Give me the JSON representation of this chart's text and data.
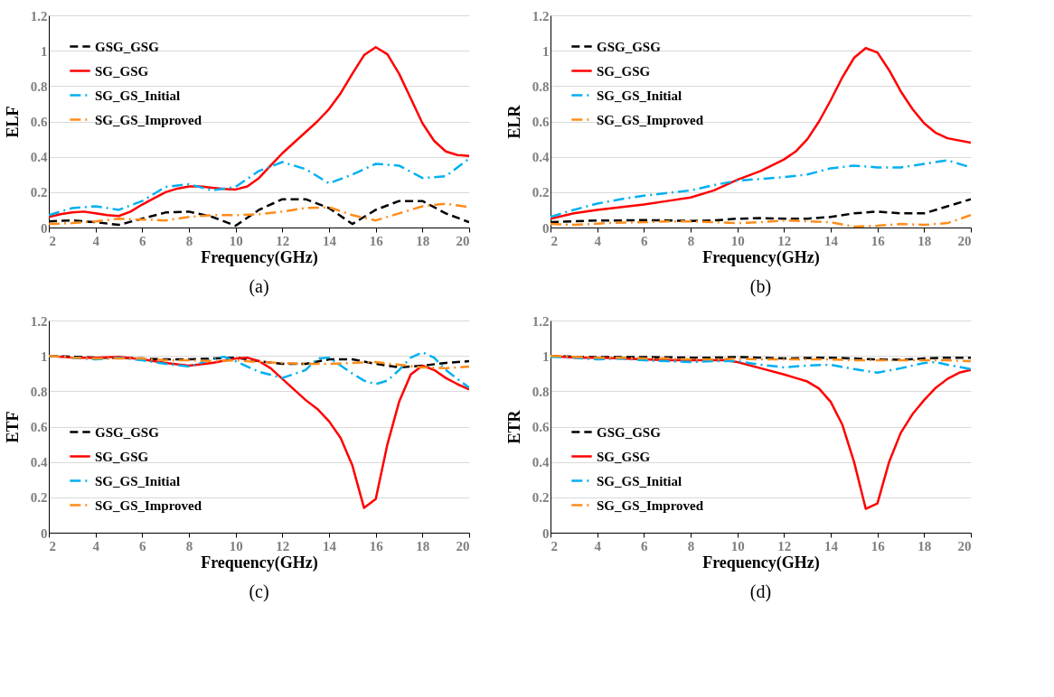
{
  "chart_data": [
    {
      "type": "line",
      "title": "(a)",
      "xlabel": "Frequency(GHz)",
      "ylabel": "ELF",
      "xlim": [
        2,
        20
      ],
      "xticks": [
        2,
        4,
        6,
        8,
        10,
        12,
        14,
        16,
        18,
        20
      ],
      "ylim": [
        0,
        1.2
      ],
      "yticks": [
        0,
        0.2,
        0.4,
        0.6,
        0.8,
        1,
        1.2
      ],
      "grid": "y",
      "legend": "top left",
      "series": [
        {
          "name": "GSG_GSG",
          "color": "#000000",
          "line_style": "dashed",
          "x": [
            2,
            3,
            4,
            5,
            6,
            7,
            8,
            9,
            10,
            11,
            12,
            13,
            14,
            15,
            16,
            17,
            18,
            19,
            20
          ],
          "values": [
            0.035,
            0.04,
            0.03,
            0.015,
            0.05,
            0.085,
            0.09,
            0.06,
            0.01,
            0.1,
            0.16,
            0.16,
            0.11,
            0.02,
            0.1,
            0.15,
            0.15,
            0.08,
            0.03
          ]
        },
        {
          "name": "SG_GSG",
          "color": "#ff0000",
          "line_style": "solid",
          "x": [
            2,
            2.5,
            3,
            3.5,
            4,
            4.5,
            5,
            5.5,
            6,
            6.5,
            7,
            7.5,
            8,
            8.5,
            9,
            9.5,
            10,
            10.5,
            11,
            11.5,
            12,
            12.5,
            13,
            13.5,
            14,
            14.5,
            15,
            15.5,
            16,
            16.5,
            17,
            17.5,
            18,
            18.5,
            19,
            19.5,
            20
          ],
          "values": [
            0.06,
            0.075,
            0.085,
            0.09,
            0.08,
            0.07,
            0.065,
            0.09,
            0.13,
            0.165,
            0.2,
            0.22,
            0.232,
            0.232,
            0.225,
            0.218,
            0.215,
            0.232,
            0.28,
            0.35,
            0.42,
            0.48,
            0.54,
            0.6,
            0.67,
            0.76,
            0.87,
            0.975,
            1.02,
            0.98,
            0.87,
            0.73,
            0.59,
            0.49,
            0.43,
            0.41,
            0.405
          ]
        },
        {
          "name": "SG_GS_Initial",
          "color": "#00b0f0",
          "line_style": "dashdot",
          "x": [
            2,
            3,
            4,
            5,
            6,
            7,
            8,
            9,
            10,
            11,
            12,
            13,
            14,
            15,
            16,
            17,
            18,
            19,
            20
          ],
          "values": [
            0.07,
            0.11,
            0.12,
            0.1,
            0.15,
            0.23,
            0.245,
            0.21,
            0.23,
            0.32,
            0.37,
            0.33,
            0.25,
            0.3,
            0.36,
            0.35,
            0.28,
            0.29,
            0.39
          ]
        },
        {
          "name": "SG_GS_Improved",
          "color": "#ff8c1a",
          "line_style": "dashdot",
          "x": [
            2,
            3,
            4,
            5,
            6,
            7,
            8,
            9,
            10,
            11,
            12,
            13,
            14,
            15,
            16,
            17,
            18,
            19,
            20
          ],
          "values": [
            0.02,
            0.025,
            0.035,
            0.05,
            0.045,
            0.04,
            0.06,
            0.07,
            0.07,
            0.075,
            0.09,
            0.11,
            0.115,
            0.07,
            0.04,
            0.08,
            0.12,
            0.135,
            0.115
          ]
        }
      ]
    },
    {
      "type": "line",
      "title": "(b)",
      "xlabel": "Frequency(GHz)",
      "ylabel": "ELR",
      "xlim": [
        2,
        20
      ],
      "xticks": [
        2,
        4,
        6,
        8,
        10,
        12,
        14,
        16,
        18,
        20
      ],
      "ylim": [
        0,
        1.2
      ],
      "yticks": [
        0,
        0.2,
        0.4,
        0.6,
        0.8,
        1,
        1.2
      ],
      "grid": "y",
      "legend": "top left",
      "series": [
        {
          "name": "GSG_GSG",
          "color": "#000000",
          "line_style": "dashed",
          "x": [
            2,
            3,
            4,
            5,
            6,
            7,
            8,
            9,
            10,
            11,
            12,
            13,
            14,
            15,
            16,
            17,
            18,
            19,
            20
          ],
          "values": [
            0.03,
            0.035,
            0.04,
            0.04,
            0.042,
            0.04,
            0.037,
            0.04,
            0.05,
            0.053,
            0.05,
            0.05,
            0.06,
            0.08,
            0.09,
            0.08,
            0.08,
            0.12,
            0.16
          ]
        },
        {
          "name": "SG_GSG",
          "color": "#ff0000",
          "line_style": "solid",
          "x": [
            2,
            3,
            4,
            5,
            6,
            7,
            8,
            9,
            10,
            11,
            12,
            12.5,
            13,
            13.5,
            14,
            14.5,
            15,
            15.5,
            16,
            16.5,
            17,
            17.5,
            18,
            18.5,
            19,
            20
          ],
          "values": [
            0.05,
            0.08,
            0.1,
            0.115,
            0.13,
            0.15,
            0.17,
            0.21,
            0.27,
            0.32,
            0.385,
            0.43,
            0.5,
            0.6,
            0.72,
            0.85,
            0.96,
            1.015,
            0.99,
            0.89,
            0.77,
            0.67,
            0.59,
            0.535,
            0.505,
            0.48
          ]
        },
        {
          "name": "SG_GS_Initial",
          "color": "#00b0f0",
          "line_style": "dashdot",
          "x": [
            2,
            3,
            4,
            5,
            6,
            7,
            8,
            9,
            10,
            11,
            12,
            13,
            14,
            15,
            16,
            17,
            18,
            19,
            20
          ],
          "values": [
            0.06,
            0.1,
            0.135,
            0.16,
            0.18,
            0.195,
            0.21,
            0.24,
            0.265,
            0.275,
            0.285,
            0.3,
            0.335,
            0.35,
            0.34,
            0.34,
            0.36,
            0.38,
            0.34
          ]
        },
        {
          "name": "SG_GS_Improved",
          "color": "#ff8c1a",
          "line_style": "dashdot",
          "x": [
            2,
            3,
            4,
            5,
            6,
            7,
            8,
            9,
            10,
            11,
            12,
            13,
            14,
            15,
            16,
            17,
            18,
            19,
            20
          ],
          "values": [
            0.02,
            0.015,
            0.022,
            0.028,
            0.03,
            0.034,
            0.035,
            0.03,
            0.025,
            0.03,
            0.04,
            0.035,
            0.03,
            0.005,
            0.01,
            0.02,
            0.015,
            0.025,
            0.07
          ]
        }
      ]
    },
    {
      "type": "line",
      "title": "(c)",
      "xlabel": "Frequency(GHz)",
      "ylabel": "ETF",
      "xlim": [
        2,
        20
      ],
      "xticks": [
        2,
        4,
        6,
        8,
        10,
        12,
        14,
        16,
        18,
        20
      ],
      "ylim": [
        0,
        1.2
      ],
      "yticks": [
        0,
        0.2,
        0.4,
        0.6,
        0.8,
        1,
        1.2
      ],
      "grid": "y",
      "legend": "bottom left",
      "series": [
        {
          "name": "GSG_GSG",
          "color": "#000000",
          "line_style": "dashed",
          "x": [
            2,
            3,
            4,
            5,
            6,
            7,
            8,
            9,
            10,
            11,
            12,
            13,
            14,
            15,
            16,
            17,
            18,
            19,
            20
          ],
          "values": [
            1.0,
            0.995,
            0.99,
            0.99,
            0.985,
            0.98,
            0.98,
            0.985,
            0.99,
            0.97,
            0.955,
            0.955,
            0.98,
            0.98,
            0.955,
            0.935,
            0.945,
            0.96,
            0.97
          ]
        },
        {
          "name": "SG_GSG",
          "color": "#ff0000",
          "line_style": "solid",
          "x": [
            2,
            3,
            4,
            5,
            6,
            7,
            8,
            9,
            10,
            10.5,
            11,
            11.5,
            12,
            12.5,
            13,
            13.5,
            14,
            14.5,
            15,
            15.5,
            16,
            16.5,
            17,
            17.5,
            18,
            18.5,
            19,
            19.5,
            20
          ],
          "values": [
            1.0,
            0.99,
            0.99,
            0.995,
            0.98,
            0.96,
            0.945,
            0.96,
            0.985,
            0.99,
            0.97,
            0.93,
            0.87,
            0.81,
            0.75,
            0.7,
            0.63,
            0.535,
            0.38,
            0.14,
            0.19,
            0.5,
            0.74,
            0.895,
            0.945,
            0.92,
            0.875,
            0.84,
            0.81
          ]
        },
        {
          "name": "SG_GS_Initial",
          "color": "#00b0f0",
          "line_style": "dashdot",
          "x": [
            2,
            3,
            4,
            5,
            6,
            7,
            8,
            9,
            9.5,
            10,
            11,
            12,
            13,
            13.5,
            14,
            15,
            15.5,
            16,
            16.5,
            17,
            17.5,
            18,
            18.5,
            19,
            20
          ],
          "values": [
            1.0,
            0.99,
            0.98,
            0.99,
            0.975,
            0.955,
            0.94,
            0.98,
            0.995,
            0.97,
            0.91,
            0.875,
            0.92,
            0.985,
            0.99,
            0.9,
            0.86,
            0.84,
            0.86,
            0.92,
            0.99,
            1.02,
            0.99,
            0.92,
            0.82
          ]
        },
        {
          "name": "SG_GS_Improved",
          "color": "#ff8c1a",
          "line_style": "dashdot",
          "x": [
            2,
            3,
            4,
            5,
            6,
            7,
            8,
            9,
            10,
            11,
            12,
            13,
            14,
            15,
            16,
            17,
            18,
            19,
            20
          ],
          "values": [
            1.0,
            0.99,
            0.985,
            0.985,
            0.985,
            0.975,
            0.975,
            0.97,
            0.975,
            0.965,
            0.96,
            0.955,
            0.955,
            0.96,
            0.965,
            0.95,
            0.935,
            0.93,
            0.94
          ]
        }
      ]
    },
    {
      "type": "line",
      "title": "(d)",
      "xlabel": "Frequency(GHz)",
      "ylabel": "ETR",
      "xlim": [
        2,
        20
      ],
      "xticks": [
        2,
        4,
        6,
        8,
        10,
        12,
        14,
        16,
        18,
        20
      ],
      "ylim": [
        0,
        1.2
      ],
      "yticks": [
        0,
        0.2,
        0.4,
        0.6,
        0.8,
        1,
        1.2
      ],
      "grid": "y",
      "legend": "bottom left",
      "series": [
        {
          "name": "GSG_GSG",
          "color": "#000000",
          "line_style": "dashed",
          "x": [
            2,
            3,
            4,
            5,
            6,
            7,
            8,
            9,
            10,
            11,
            12,
            13,
            14,
            15,
            16,
            17,
            18,
            19,
            20
          ],
          "values": [
            1.0,
            0.995,
            0.993,
            0.993,
            0.993,
            0.992,
            0.99,
            0.99,
            0.993,
            0.99,
            0.985,
            0.988,
            0.99,
            0.985,
            0.98,
            0.978,
            0.985,
            0.99,
            0.99
          ]
        },
        {
          "name": "SG_GSG",
          "color": "#ff0000",
          "line_style": "solid",
          "x": [
            2,
            3,
            4,
            5,
            6,
            7,
            8,
            9,
            9.5,
            10,
            11,
            12,
            12.5,
            13,
            13.5,
            14,
            14.5,
            15,
            15.5,
            16,
            16.5,
            17,
            17.5,
            18,
            18.5,
            19,
            19.5,
            20
          ],
          "values": [
            1.0,
            0.99,
            0.99,
            0.985,
            0.98,
            0.975,
            0.975,
            0.975,
            0.975,
            0.965,
            0.93,
            0.895,
            0.875,
            0.855,
            0.815,
            0.74,
            0.61,
            0.4,
            0.135,
            0.165,
            0.4,
            0.565,
            0.67,
            0.75,
            0.82,
            0.87,
            0.905,
            0.92
          ]
        },
        {
          "name": "SG_GS_Initial",
          "color": "#00b0f0",
          "line_style": "dashdot",
          "x": [
            2,
            3,
            4,
            5,
            6,
            7,
            8,
            9,
            10,
            11,
            12,
            13,
            14,
            15,
            16,
            17,
            18,
            18.5,
            19,
            20
          ],
          "values": [
            0.995,
            0.99,
            0.98,
            0.985,
            0.975,
            0.97,
            0.965,
            0.97,
            0.97,
            0.95,
            0.935,
            0.945,
            0.95,
            0.925,
            0.905,
            0.93,
            0.96,
            0.965,
            0.95,
            0.925
          ]
        },
        {
          "name": "SG_GS_Improved",
          "color": "#ff8c1a",
          "line_style": "dashdot",
          "x": [
            2,
            3,
            4,
            5,
            6,
            7,
            8,
            9,
            10,
            11,
            12,
            13,
            14,
            15,
            16,
            17,
            18,
            19,
            20
          ],
          "values": [
            1.0,
            0.995,
            0.99,
            0.99,
            0.985,
            0.985,
            0.98,
            0.98,
            0.985,
            0.98,
            0.98,
            0.98,
            0.98,
            0.975,
            0.975,
            0.975,
            0.975,
            0.975,
            0.97
          ]
        }
      ]
    }
  ]
}
